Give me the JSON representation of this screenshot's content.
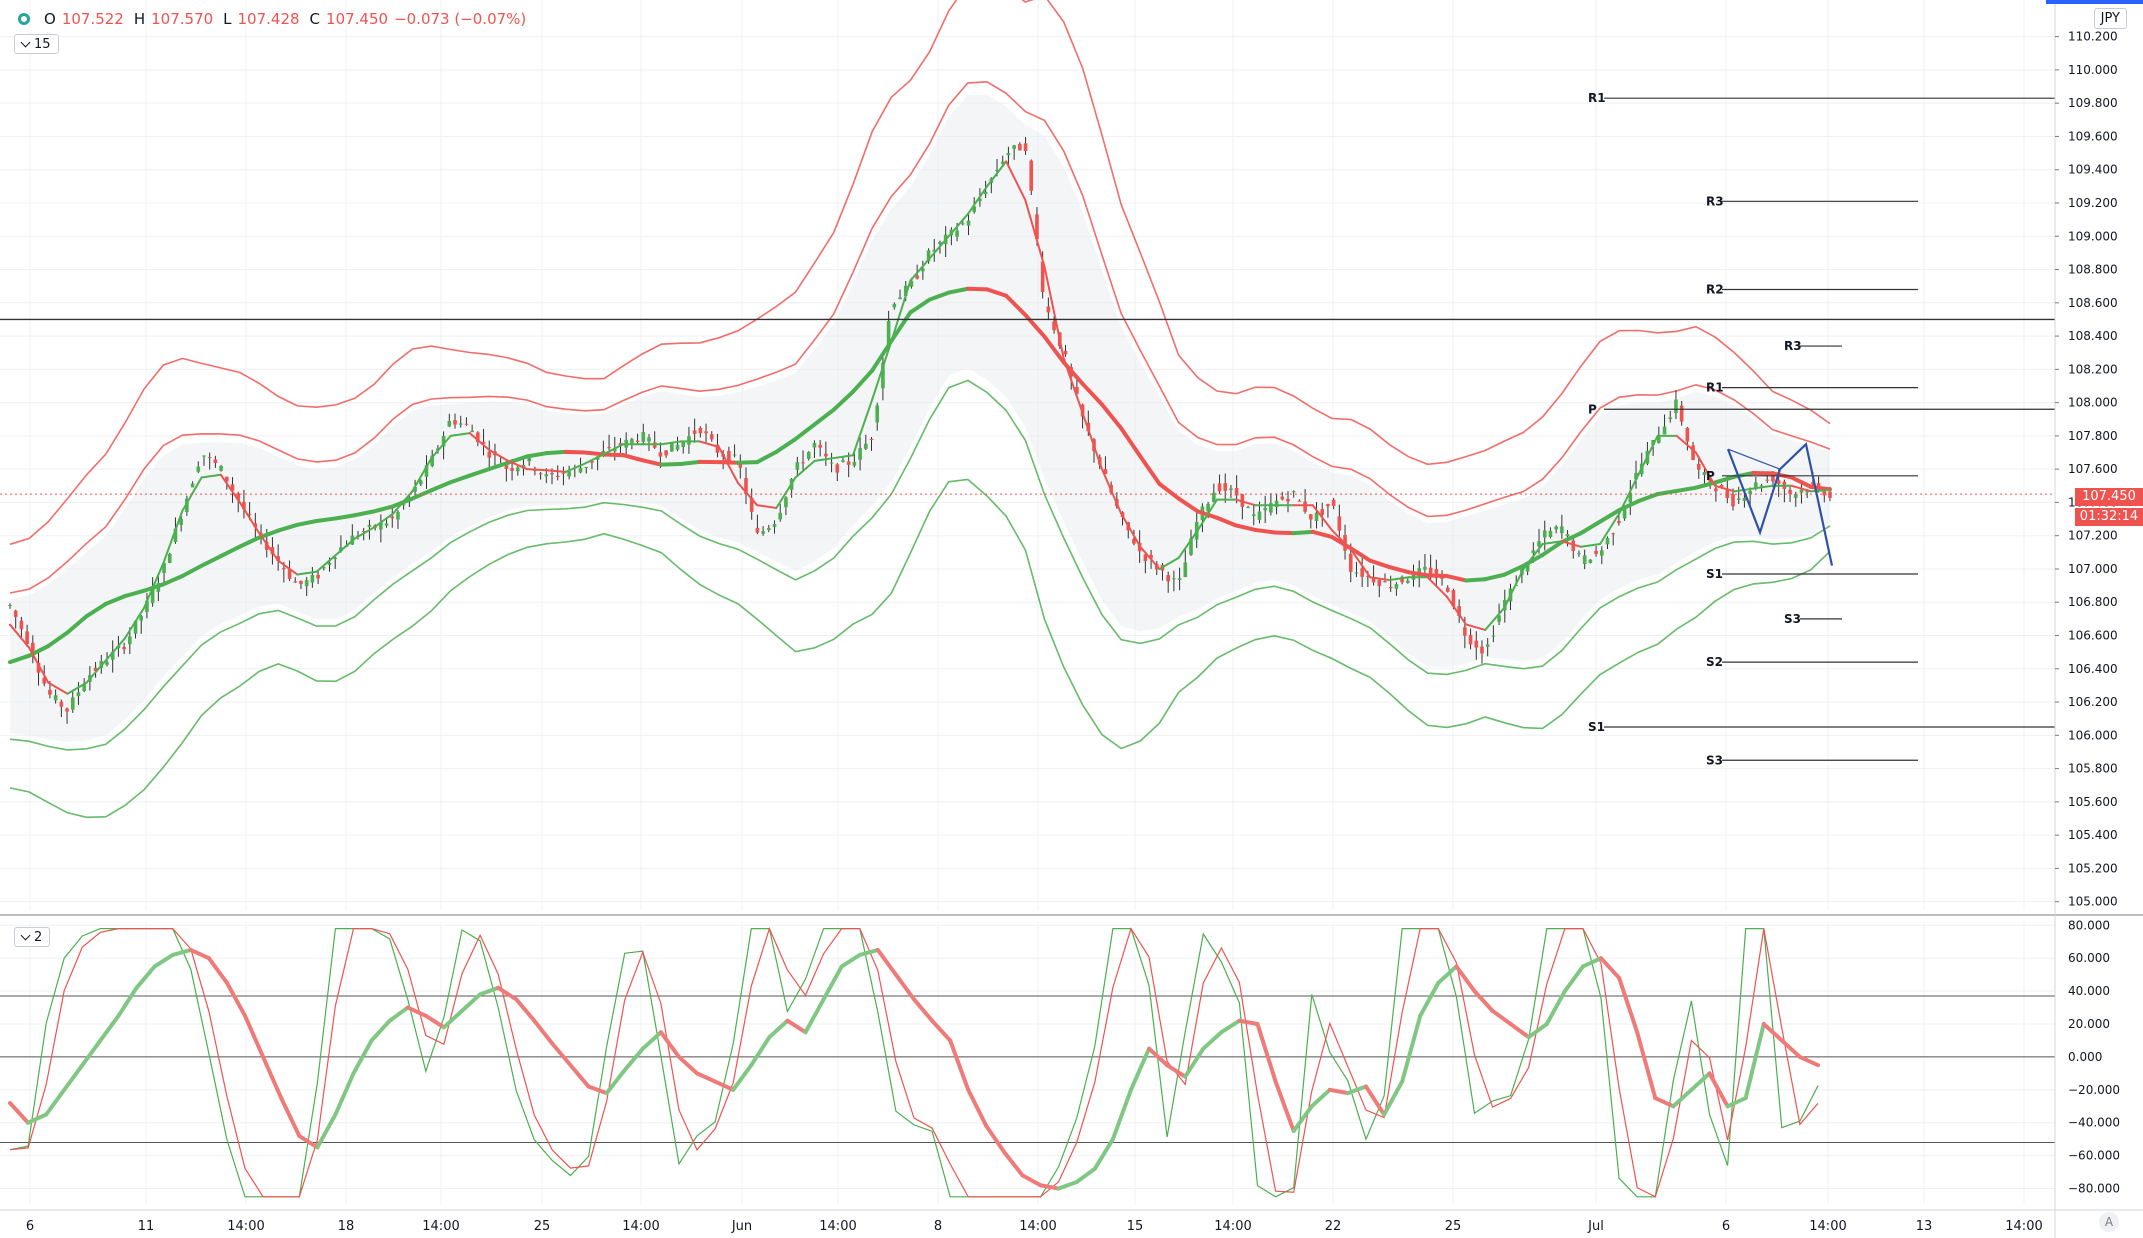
{
  "header": {
    "o_label": "O",
    "o": "107.522",
    "h_label": "H",
    "h": "107.570",
    "l_label": "L",
    "l": "107.428",
    "c_label": "C",
    "c": "107.450",
    "change": "−0.073 (−0.07%)"
  },
  "currency": "JPY",
  "pane1_tag": "15",
  "pane2_tag": "2",
  "last_price": "107.450",
  "countdown": "01:32:14",
  "auto_label": "A",
  "colors": {
    "up": "#4caf50",
    "down": "#ef5350",
    "band_up": "#ef5350",
    "band_dn": "#4caf50",
    "pattern": "#2f52a8",
    "grid": "#eef0f3"
  },
  "chart_data": [
    {
      "type": "candlestick",
      "y_axis_labels": [
        "110.200",
        "110.000",
        "109.800",
        "109.600",
        "109.400",
        "109.200",
        "109.000",
        "108.800",
        "108.600",
        "108.400",
        "108.200",
        "108.000",
        "107.800",
        "107.600",
        "107.400",
        "107.200",
        "107.000",
        "106.800",
        "106.600",
        "106.400",
        "106.200",
        "106.000",
        "105.800",
        "105.600",
        "105.400",
        "105.200",
        "105.000"
      ],
      "ylim": [
        104.95,
        110.3
      ],
      "x_axis_labels": [
        "6",
        "11",
        "14:00",
        "18",
        "14:00",
        "25",
        "14:00",
        "Jun",
        "14:00",
        "8",
        "14:00",
        "15",
        "14:00",
        "22",
        "25",
        "Jul",
        "6",
        "14:00",
        "13",
        "14:00"
      ],
      "close_path": [
        106.78,
        106.55,
        106.25,
        106.15,
        106.35,
        106.45,
        106.55,
        106.75,
        107.0,
        107.35,
        107.7,
        107.6,
        107.4,
        107.2,
        107.05,
        106.9,
        106.95,
        107.1,
        107.2,
        107.25,
        107.3,
        107.45,
        107.65,
        107.9,
        107.85,
        107.7,
        107.6,
        107.65,
        107.55,
        107.58,
        107.62,
        107.7,
        107.75,
        107.8,
        107.7,
        107.75,
        107.85,
        107.7,
        107.65,
        107.2,
        107.3,
        107.6,
        107.75,
        107.6,
        107.65,
        107.8,
        108.6,
        108.7,
        108.9,
        109.0,
        109.1,
        109.3,
        109.5,
        109.55,
        108.6,
        108.3,
        107.9,
        107.6,
        107.3,
        107.1,
        107.0,
        106.9,
        107.3,
        107.5,
        107.45,
        107.3,
        107.4,
        107.45,
        107.3,
        107.4,
        107.0,
        106.95,
        106.9,
        106.95,
        107.0,
        106.9,
        106.6,
        106.5,
        106.8,
        107.0,
        107.2,
        107.25,
        107.05,
        107.1,
        107.3,
        107.6,
        107.8,
        108.0,
        107.6,
        107.5,
        107.4,
        107.5,
        107.55,
        107.45,
        107.5,
        107.45
      ],
      "pattern_points": [
        107.72,
        107.22,
        107.6,
        107.75,
        107.02
      ],
      "pivots": [
        {
          "label": "R1",
          "value": 109.83,
          "span": "long"
        },
        {
          "label": "S1",
          "value": 106.05,
          "span": "long"
        },
        {
          "label": "R3",
          "value": 109.21,
          "span": "mid"
        },
        {
          "label": "R2",
          "value": 108.68,
          "span": "mid"
        },
        {
          "label": "R1",
          "value": 108.09,
          "span": "mid"
        },
        {
          "label": "P",
          "value": 107.56,
          "span": "mid"
        },
        {
          "label": "S1",
          "value": 106.97,
          "span": "mid"
        },
        {
          "label": "S2",
          "value": 106.44,
          "span": "mid"
        },
        {
          "label": "S3",
          "value": 105.85,
          "span": "mid"
        },
        {
          "label": "R3",
          "value": 108.34,
          "span": "short"
        },
        {
          "label": "S3",
          "value": 106.7,
          "span": "short"
        },
        {
          "label": "P",
          "value": 107.96,
          "span": "right"
        }
      ],
      "h_line": 108.5
    },
    {
      "type": "line",
      "y_axis_labels": [
        "80.000",
        "60.000",
        "40.000",
        "20.000",
        "0.000",
        "−20.000",
        "−40.000",
        "−60.000",
        "−80.000"
      ],
      "ylim": [
        -90,
        82
      ],
      "levels": [
        37,
        0,
        -52
      ],
      "osc_path": [
        -28,
        -40,
        -35,
        -20,
        -5,
        10,
        25,
        42,
        55,
        62,
        65,
        60,
        45,
        25,
        0,
        -25,
        -48,
        -55,
        -35,
        -10,
        10,
        22,
        30,
        25,
        18,
        28,
        38,
        42,
        35,
        22,
        8,
        -5,
        -18,
        -22,
        -8,
        5,
        15,
        0,
        -10,
        -15,
        -20,
        -5,
        12,
        22,
        15,
        35,
        55,
        62,
        65,
        50,
        35,
        22,
        10,
        -20,
        -42,
        -58,
        -72,
        -78,
        -80,
        -76,
        -68,
        -50,
        -20,
        5,
        -5,
        -12,
        5,
        15,
        22,
        20,
        -15,
        -45,
        -30,
        -20,
        -22,
        -18,
        -35,
        -15,
        25,
        45,
        55,
        40,
        28,
        20,
        12,
        20,
        40,
        55,
        60,
        48,
        15,
        -25,
        -30,
        -20,
        -10,
        -30,
        -25,
        20,
        10,
        0,
        -5
      ]
    }
  ]
}
